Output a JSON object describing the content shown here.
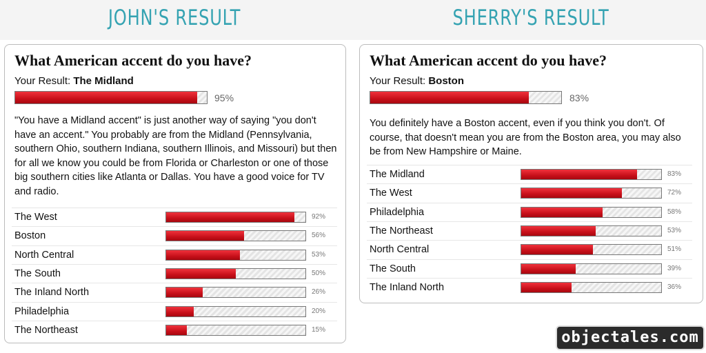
{
  "panels": [
    {
      "heading": "JOHN'S RESULT",
      "title": "What American accent do you have?",
      "result_prefix": "Your Result:",
      "result": {
        "name": "The Midland",
        "value": 95,
        "label": "95%"
      },
      "description": "\"You have a Midland accent\" is just another way of saying \"you don't have an accent.\" You probably are from the Midland (Pennsylvania, southern Ohio, southern Indiana, southern Illinois, and Missouri) but then for all we know you could be from Florida or Charleston or one of those big southern cities like Atlanta or Dallas. You have a good voice for TV and radio.",
      "rows": [
        {
          "name": "The West",
          "value": 92,
          "label": "92%"
        },
        {
          "name": "Boston",
          "value": 56,
          "label": "56%"
        },
        {
          "name": "North Central",
          "value": 53,
          "label": "53%"
        },
        {
          "name": "The South",
          "value": 50,
          "label": "50%"
        },
        {
          "name": "The Inland North",
          "value": 26,
          "label": "26%"
        },
        {
          "name": "Philadelphia",
          "value": 20,
          "label": "20%"
        },
        {
          "name": "The Northeast",
          "value": 15,
          "label": "15%"
        }
      ]
    },
    {
      "heading": "SHERRY'S RESULT",
      "title": "What American accent do you have?",
      "result_prefix": "Your Result:",
      "result": {
        "name": "Boston",
        "value": 83,
        "label": "83%"
      },
      "description": "You definitely have a Boston accent, even if you think you don't. Of course, that doesn't mean you are from the Boston area, you may also be from New Hampshire or Maine.",
      "rows": [
        {
          "name": "The Midland",
          "value": 83,
          "label": "83%"
        },
        {
          "name": "The West",
          "value": 72,
          "label": "72%"
        },
        {
          "name": "Philadelphia",
          "value": 58,
          "label": "58%"
        },
        {
          "name": "The Northeast",
          "value": 53,
          "label": "53%"
        },
        {
          "name": "North Central",
          "value": 51,
          "label": "51%"
        },
        {
          "name": "The South",
          "value": 39,
          "label": "39%"
        },
        {
          "name": "The Inland North",
          "value": 36,
          "label": "36%"
        }
      ]
    }
  ],
  "watermark": "objectales.com"
}
